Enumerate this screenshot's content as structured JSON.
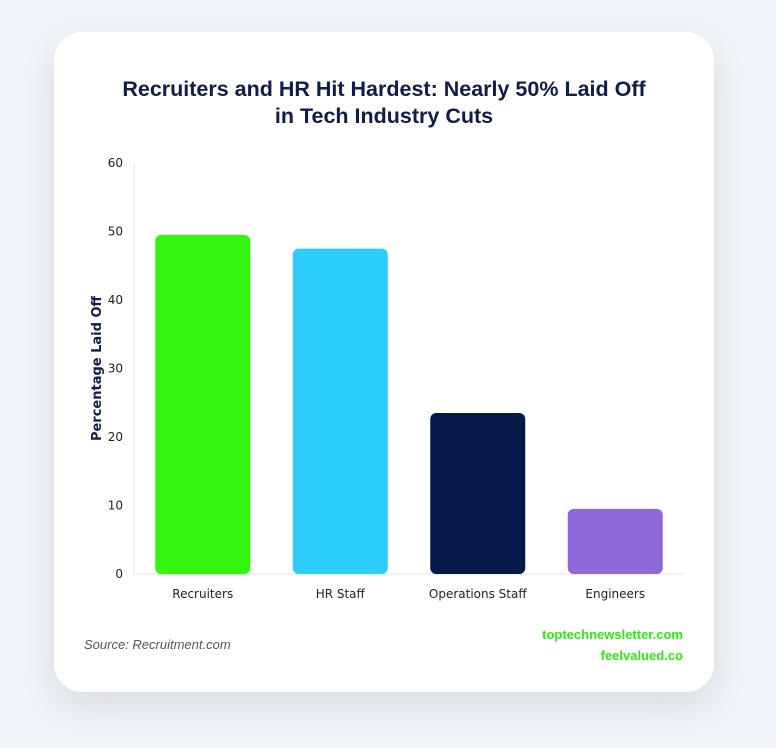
{
  "title": {
    "line1": "Recruiters and HR Hit Hardest: Nearly 50% Laid Off",
    "line2": "in Tech Industry Cuts"
  },
  "source": "Source: Recruitment.com",
  "credits": [
    "toptechnewsletter.com",
    "feelvalued.co"
  ],
  "colors": {
    "title": "#0f1d48",
    "credit": "#2ee812"
  },
  "chart_data": {
    "type": "bar",
    "title": "Recruiters and HR Hit Hardest: Nearly 50% Laid Off in Tech Industry Cuts",
    "categories": [
      "Recruiters",
      "HR Staff",
      "Operations Staff",
      "Engineers"
    ],
    "values": [
      49.5,
      47.5,
      23.5,
      9.5
    ],
    "colors": [
      "#33f50f",
      "#2ccdfb",
      "#04194a",
      "#8e68d9"
    ],
    "xlabel": "",
    "ylabel": "Percentage Laid Off",
    "ylim": [
      0,
      60
    ],
    "yticks": [
      0,
      10,
      20,
      30,
      40,
      50,
      60
    ],
    "grid": false,
    "legend": "none"
  }
}
